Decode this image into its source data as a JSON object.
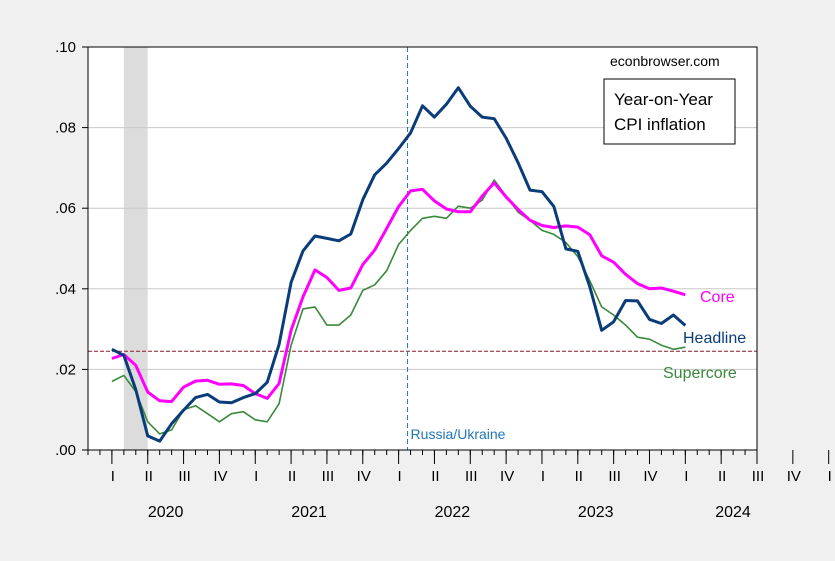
{
  "chart_data": {
    "type": "line",
    "watermark": "econbrowser.com",
    "legend_title_lines": [
      "Year-on-Year",
      "CPI inflation"
    ],
    "y_ticks": [
      ".00",
      ".02",
      ".04",
      ".06",
      ".08",
      ".10"
    ],
    "ylim": [
      0,
      0.1
    ],
    "x_start": "2019-11",
    "x_end": "2024-07",
    "quarter_labels": [
      "I",
      "II",
      "III",
      "IV",
      "I",
      "II",
      "III",
      "IV",
      "I",
      "II",
      "III",
      "IV",
      "I",
      "II",
      "III",
      "IV",
      "I",
      "II",
      "III",
      "IV",
      "I",
      "II"
    ],
    "year_labels": [
      "2020",
      "2021",
      "2022",
      "2023",
      "2024"
    ],
    "recession_shade": {
      "from": "2020-02",
      "to": "2020-04"
    },
    "reference_line": {
      "value": 0.0245,
      "color": "#8b1a2b"
    },
    "event_marker": {
      "date": "2022-02",
      "label": "Russia/Ukraine",
      "color": "#1f77b4"
    },
    "x_start_months": [
      "2020-01"
    ],
    "series": [
      {
        "name": "Headline",
        "color": "#0b3c7a",
        "start": "2020-01",
        "values": [
          0.025,
          0.0235,
          0.015,
          0.0035,
          0.0022,
          0.0065,
          0.0099,
          0.013,
          0.0138,
          0.0119,
          0.0117,
          0.013,
          0.014,
          0.0168,
          0.0262,
          0.0416,
          0.0494,
          0.0531,
          0.0525,
          0.0519,
          0.0536,
          0.0621,
          0.0683,
          0.0712,
          0.0748,
          0.0787,
          0.0854,
          0.0826,
          0.0858,
          0.0899,
          0.0853,
          0.0826,
          0.0822,
          0.0774,
          0.0713,
          0.0645,
          0.0641,
          0.0604,
          0.0499,
          0.0493,
          0.0405,
          0.0297,
          0.0318,
          0.0371,
          0.037,
          0.0324,
          0.0314,
          0.0335,
          0.0309
        ]
      },
      {
        "name": "Core",
        "color": "#ff00ff",
        "start": "2020-01",
        "values": [
          0.0227,
          0.0237,
          0.021,
          0.0144,
          0.0122,
          0.012,
          0.0156,
          0.0171,
          0.0173,
          0.0163,
          0.0164,
          0.016,
          0.014,
          0.0128,
          0.0165,
          0.0297,
          0.038,
          0.0447,
          0.0428,
          0.0396,
          0.0402,
          0.046,
          0.0496,
          0.055,
          0.0604,
          0.0643,
          0.0647,
          0.0618,
          0.0598,
          0.0591,
          0.0591,
          0.063,
          0.0663,
          0.0628,
          0.0597,
          0.057,
          0.0557,
          0.0552,
          0.0556,
          0.0553,
          0.0534,
          0.0482,
          0.0466,
          0.0436,
          0.0413,
          0.04,
          0.0402,
          0.0394,
          0.0385
        ]
      },
      {
        "name": "Supercore",
        "color": "#3a8a3a",
        "start": "2020-01",
        "values": [
          0.017,
          0.0185,
          0.0145,
          0.007,
          0.004,
          0.005,
          0.01,
          0.011,
          0.009,
          0.007,
          0.009,
          0.0095,
          0.0075,
          0.007,
          0.0115,
          0.026,
          0.035,
          0.0355,
          0.031,
          0.031,
          0.0335,
          0.0396,
          0.041,
          0.0445,
          0.051,
          0.0545,
          0.0575,
          0.058,
          0.0575,
          0.0605,
          0.06,
          0.062,
          0.067,
          0.063,
          0.059,
          0.057,
          0.0545,
          0.0535,
          0.0515,
          0.048,
          0.042,
          0.0355,
          0.0335,
          0.031,
          0.028,
          0.0275,
          0.026,
          0.025,
          0.0255
        ]
      }
    ]
  }
}
